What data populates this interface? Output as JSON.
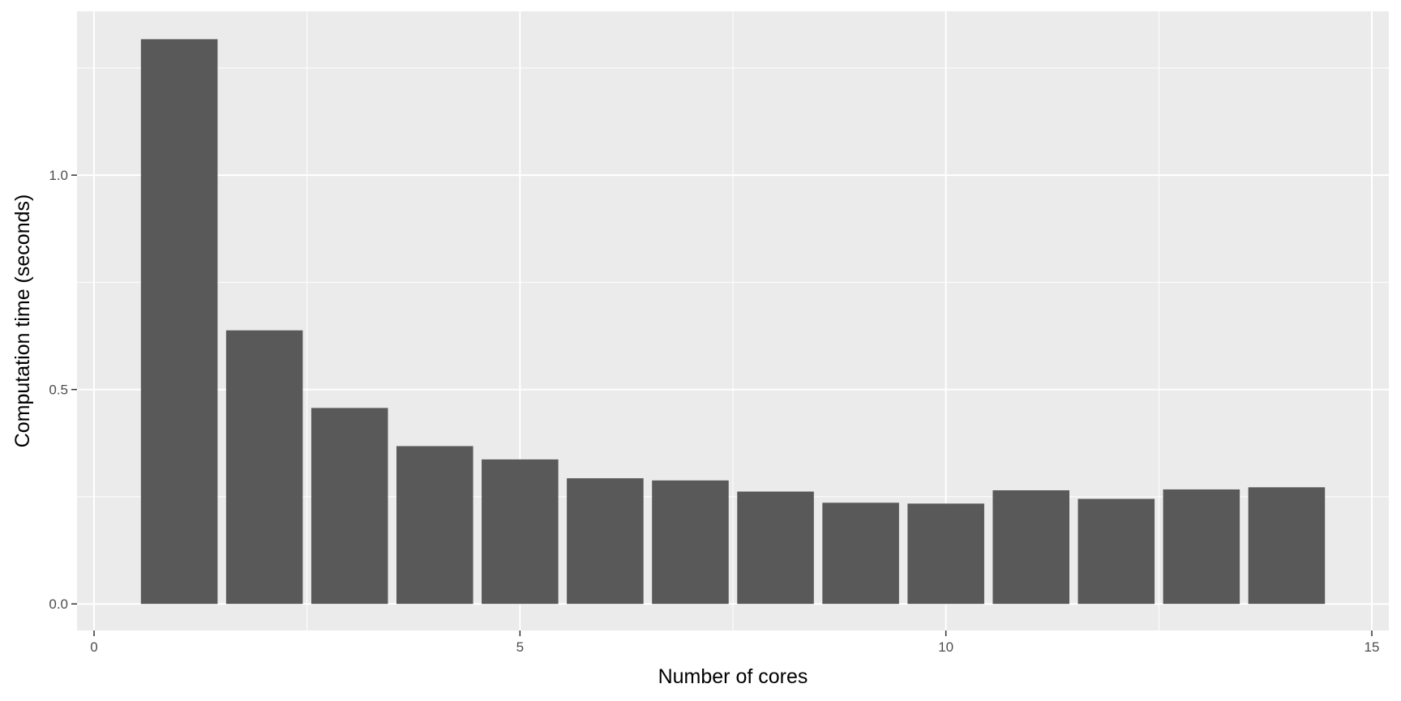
{
  "chart_data": {
    "type": "bar",
    "title": "",
    "xlabel": "Number of cores",
    "ylabel": "Computation time (seconds)",
    "x": [
      1,
      2,
      3,
      4,
      5,
      6,
      7,
      8,
      9,
      10,
      11,
      12,
      13,
      14
    ],
    "values": [
      1.317,
      0.638,
      0.457,
      0.368,
      0.337,
      0.293,
      0.288,
      0.262,
      0.236,
      0.234,
      0.265,
      0.245,
      0.267,
      0.272
    ],
    "xlim": [
      -0.2,
      15.2
    ],
    "ylim": [
      -0.062,
      1.382
    ],
    "x_ticks": [
      {
        "value": 0,
        "label": "0"
      },
      {
        "value": 5,
        "label": "5"
      },
      {
        "value": 10,
        "label": "10"
      },
      {
        "value": 15,
        "label": "15"
      }
    ],
    "y_ticks": [
      {
        "value": 0.0,
        "label": "0.0"
      },
      {
        "value": 0.5,
        "label": "0.5"
      },
      {
        "value": 1.0,
        "label": "1.0"
      }
    ],
    "x_minor": [
      2.5,
      7.5,
      12.5
    ],
    "y_minor": [
      0.25,
      0.75,
      1.25
    ],
    "grid": true,
    "legend": "none",
    "colors": {
      "panel": "#ebebeb",
      "grid": "#ffffff",
      "bar": "#595959",
      "tick": "#333333"
    }
  }
}
